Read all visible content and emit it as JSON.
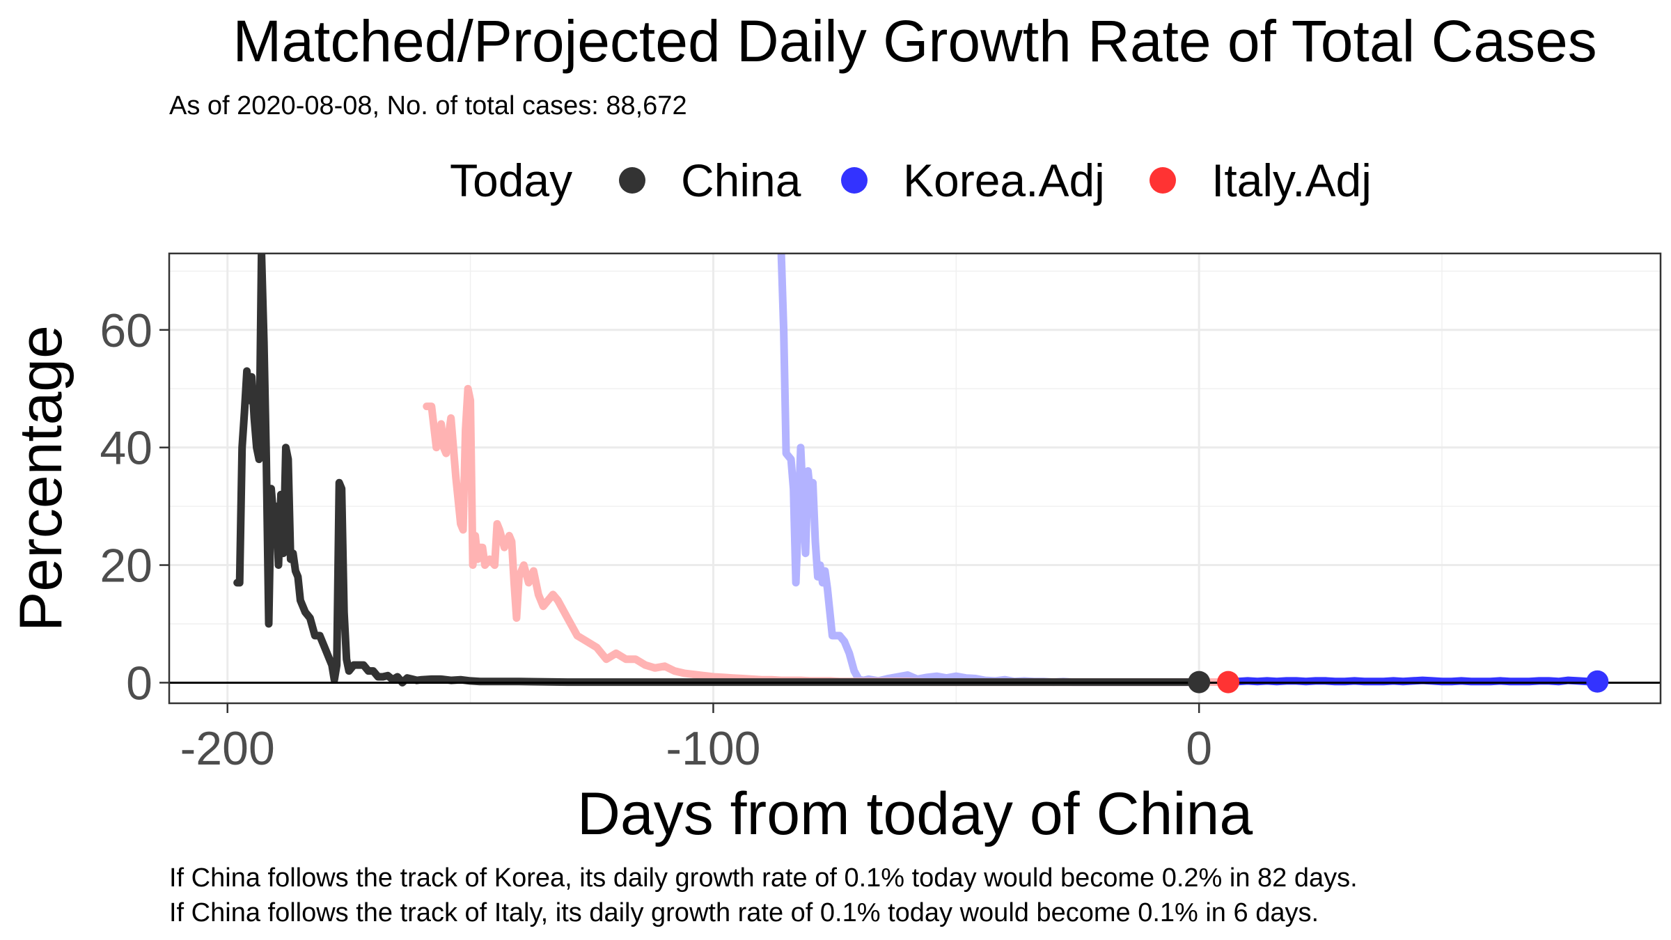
{
  "chart_data": {
    "type": "line",
    "title": "Matched/Projected Daily Growth Rate of Total Cases",
    "subtitle": "As of 2020-08-08, No. of total cases: 88,672",
    "xlabel": "Days from today of China",
    "ylabel": "Percentage",
    "xlim": [
      -212,
      95
    ],
    "ylim": [
      -3.5,
      73
    ],
    "x_ticks": [
      -200,
      -100,
      0
    ],
    "y_ticks": [
      0,
      20,
      40,
      60
    ],
    "x_tick_labels": [
      "-200",
      "-100",
      "0"
    ],
    "y_tick_labels": [
      "0",
      "20",
      "40",
      "60"
    ],
    "grid": true,
    "legend": {
      "position": "top",
      "title": "Today",
      "entries": [
        "China",
        "Korea.Adj",
        "Italy.Adj"
      ]
    },
    "colors": {
      "China": "#333333",
      "Korea.Adj": "#3333ff",
      "Italy.Adj": "#ff3333",
      "Korea.Adj.history": "#b3b3ff",
      "Italy.Adj.history": "#ffb3b3",
      "China.legend": "#333333",
      "Korea.Adj.legend": "#3333ff",
      "Italy.Adj.legend": "#ff3333"
    },
    "series": [
      {
        "name": "Korea.Adj",
        "segments": [
          {
            "style": "history",
            "x": [
              -86,
              -85.5,
              -85,
              -84,
              -83.5,
              -83,
              -82.5,
              -82,
              -81,
              -80.5,
              -80,
              -79.5,
              -79,
              -78.5,
              -78,
              -77.5,
              -77,
              -76.5,
              -76,
              -75.5,
              -75,
              -74.5,
              -74,
              -73,
              -72,
              -71,
              -70,
              -69,
              -68,
              -66,
              -64,
              -62,
              -60,
              -58,
              -56,
              -54,
              -52,
              -50,
              -48,
              -46,
              -44,
              -42,
              -40,
              -38,
              -36,
              -34,
              -32,
              -30,
              -28,
              -26,
              -24,
              -22,
              -20,
              -18,
              -16,
              -14,
              -12,
              -10,
              -8,
              -6,
              -4,
              -2,
              0
            ],
            "y": [
              73,
              60,
              39,
              38,
              33,
              17,
              28,
              40,
              22,
              36,
              32,
              34,
              24,
              18,
              20,
              17,
              19,
              16,
              12,
              8,
              8,
              8,
              8,
              7,
              5,
              2,
              0.5,
              0.4,
              0.6,
              0.3,
              0.7,
              1,
              1.3,
              0.6,
              0.9,
              1.1,
              0.8,
              1.1,
              0.8,
              0.7,
              0.4,
              0.3,
              0.5,
              0.2,
              0.3,
              0.2,
              0.2,
              0.1,
              0.2,
              0.1,
              0.1,
              0.1,
              0.1,
              0.1,
              0.1,
              0.1,
              0.1,
              0.1,
              0.1,
              0.1,
              0.1,
              0.1,
              0.1
            ]
          },
          {
            "style": "projection",
            "x": [
              6,
              8,
              10,
              12,
              14,
              16,
              18,
              20,
              22,
              24,
              26,
              28,
              30,
              32,
              34,
              36,
              38,
              40,
              42,
              44,
              46,
              48,
              50,
              52,
              54,
              56,
              58,
              60,
              62,
              64,
              66,
              68,
              70,
              72,
              74,
              76,
              78,
              80,
              82
            ],
            "y": [
              0.1,
              0.2,
              0.3,
              0.2,
              0.3,
              0.2,
              0.3,
              0.3,
              0.2,
              0.3,
              0.3,
              0.2,
              0.2,
              0.3,
              0.2,
              0.2,
              0.2,
              0.3,
              0.2,
              0.3,
              0.4,
              0.3,
              0.2,
              0.2,
              0.3,
              0.2,
              0.2,
              0.2,
              0.3,
              0.2,
              0.2,
              0.2,
              0.3,
              0.3,
              0.2,
              0.4,
              0.3,
              0.2,
              0.2
            ]
          }
        ],
        "today_marker": {
          "x": 82,
          "y": 0.2
        }
      },
      {
        "name": "Italy.Adj",
        "segments": [
          {
            "style": "history",
            "x": [
              -159,
              -158,
              -157,
              -156,
              -155.5,
              -155,
              -154,
              -153,
              -152,
              -151.5,
              -151,
              -150.5,
              -150,
              -149.5,
              -149,
              -148.5,
              -148,
              -147.5,
              -147,
              -146,
              -145,
              -144.5,
              -144,
              -143,
              -142,
              -141.5,
              -141,
              -140.5,
              -140,
              -139,
              -138,
              -137,
              -136,
              -135,
              -134,
              -133,
              -132,
              -130,
              -128,
              -126,
              -124,
              -122,
              -120,
              -118,
              -116,
              -114,
              -112,
              -110,
              -108,
              -106,
              -104,
              -102,
              -100,
              -98,
              -96,
              -94,
              -92,
              -90,
              -88,
              -86,
              -84,
              -82,
              -80,
              -78,
              -76,
              -74,
              -72,
              -70,
              -65,
              -60,
              -55,
              -50,
              -45,
              -40,
              -35,
              -30,
              -25,
              -20,
              -15,
              -10,
              -5,
              0,
              3,
              6
            ],
            "y": [
              47,
              47,
              40,
              44,
              40,
              39,
              45,
              35,
              27,
              26,
              43,
              50,
              48,
              20,
              25,
              21,
              23,
              23,
              20,
              21,
              20,
              27,
              26,
              23,
              25,
              24,
              17,
              11,
              18,
              20,
              17,
              19,
              15,
              13,
              14,
              15,
              14,
              11,
              8,
              7,
              6,
              4,
              5,
              4,
              4,
              3,
              2.5,
              2.8,
              2,
              1.6,
              1.4,
              1.2,
              1.0,
              0.9,
              0.8,
              0.7,
              0.6,
              0.5,
              0.5,
              0.4,
              0.4,
              0.4,
              0.3,
              0.3,
              0.3,
              0.2,
              0.2,
              0.2,
              0.2,
              0.2,
              0.1,
              0.1,
              0.1,
              0.1,
              0.1,
              0.1,
              0.1,
              0.1,
              0.1,
              0.1,
              0.1,
              0.1,
              0.1,
              0.1
            ]
          }
        ],
        "today_marker": {
          "x": 6,
          "y": 0.1
        }
      },
      {
        "name": "China",
        "segments": [
          {
            "style": "history",
            "x": [
              -198,
              -197.5,
              -197,
              -196.5,
              -196,
              -195.5,
              -195,
              -194.5,
              -194,
              -193.5,
              -193,
              -192.5,
              -192,
              -191.5,
              -191,
              -190.5,
              -190,
              -189.5,
              -189,
              -188.5,
              -188,
              -187.5,
              -187,
              -186.5,
              -186,
              -185.5,
              -185,
              -184,
              -183,
              -182,
              -181,
              -180,
              -179,
              -178.5,
              -178,
              -177.5,
              -177,
              -176.5,
              -176,
              -175.5,
              -175,
              -174,
              -173,
              -172,
              -171,
              -170,
              -169,
              -168,
              -167,
              -166,
              -165,
              -164,
              -163,
              -162,
              -161,
              -160,
              -158,
              -156,
              -154,
              -152,
              -150,
              -148,
              -146,
              -144,
              -142,
              -140,
              -130,
              -120,
              -110,
              -100,
              -90,
              -80,
              -70,
              -60,
              -50,
              -40,
              -30,
              -20,
              -10,
              0
            ],
            "y": [
              17,
              17,
              40,
              46,
              53,
              48,
              52,
              45,
              40,
              38,
              73,
              58,
              38,
              10,
              33,
              28,
              30,
              20,
              32,
              22,
              40,
              38,
              21,
              22,
              19,
              18,
              14,
              12,
              11,
              8,
              8,
              6,
              4,
              3,
              0.5,
              3,
              34,
              33,
              12,
              4,
              2,
              3,
              3,
              3,
              2,
              2,
              1,
              1,
              1.2,
              0.5,
              1,
              0,
              0.8,
              0.6,
              0.4,
              0.5,
              0.6,
              0.6,
              0.4,
              0.5,
              0.3,
              0.2,
              0.2,
              0.2,
              0.2,
              0.2,
              0.1,
              0.1,
              0.1,
              0.1,
              0.1,
              0.1,
              0.1,
              0.1,
              0.1,
              0.1,
              0.1,
              0.1,
              0.1,
              0.1
            ]
          }
        ],
        "today_marker": {
          "x": 0,
          "y": 0.1
        }
      }
    ],
    "hline": 0,
    "caption_lines": [
      "If China follows the track of Korea, its daily growth rate of 0.1% today would become 0.2% in 82 days.",
      "If China follows the track of Italy, its daily growth rate of 0.1% today would become 0.1% in 6 days."
    ]
  }
}
